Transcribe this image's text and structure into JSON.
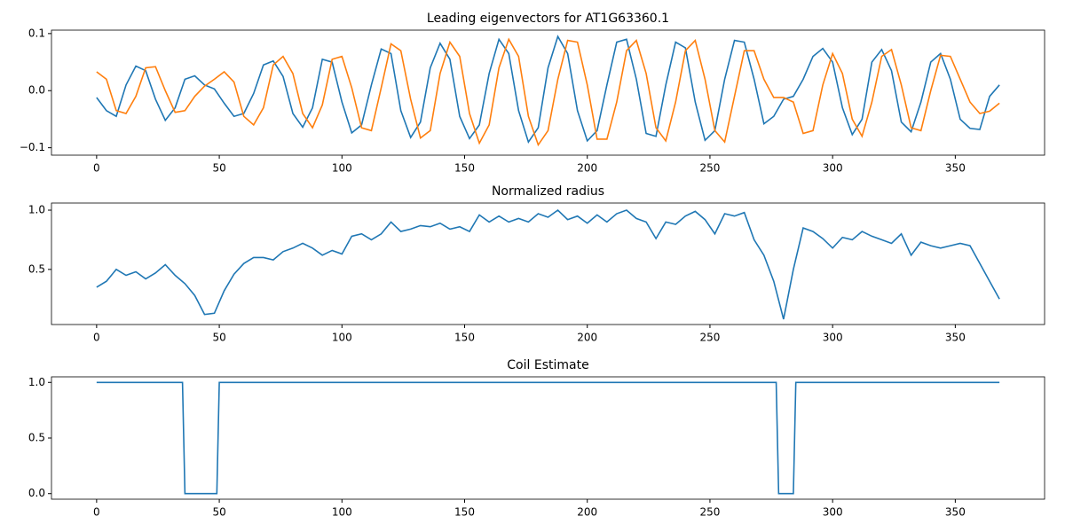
{
  "chart_data": [
    {
      "type": "line",
      "title": "Leading eigenvectors for AT1G63360.1",
      "x": [
        0,
        4,
        8,
        12,
        16,
        20,
        24,
        28,
        32,
        36,
        40,
        44,
        48,
        52,
        56,
        60,
        64,
        68,
        72,
        76,
        80,
        84,
        88,
        92,
        96,
        100,
        104,
        108,
        112,
        116,
        120,
        124,
        128,
        132,
        136,
        140,
        144,
        148,
        152,
        156,
        160,
        164,
        168,
        172,
        176,
        180,
        184,
        188,
        192,
        196,
        200,
        204,
        208,
        212,
        216,
        220,
        224,
        228,
        232,
        236,
        240,
        244,
        248,
        252,
        256,
        260,
        264,
        268,
        272,
        276,
        280,
        284,
        288,
        292,
        296,
        300,
        304,
        308,
        312,
        316,
        320,
        324,
        328,
        332,
        336,
        340,
        344,
        348,
        352,
        356,
        360,
        364,
        368
      ],
      "series": [
        {
          "color": "#1f77b4",
          "values": [
            -0.012,
            -0.035,
            -0.045,
            0.01,
            0.043,
            0.035,
            -0.015,
            -0.052,
            -0.03,
            0.02,
            0.026,
            0.01,
            0.003,
            -0.022,
            -0.045,
            -0.04,
            -0.005,
            0.045,
            0.052,
            0.025,
            -0.04,
            -0.064,
            -0.03,
            0.055,
            0.05,
            -0.02,
            -0.074,
            -0.06,
            0.01,
            0.073,
            0.065,
            -0.035,
            -0.082,
            -0.055,
            0.04,
            0.083,
            0.055,
            -0.045,
            -0.084,
            -0.06,
            0.03,
            0.09,
            0.065,
            -0.035,
            -0.09,
            -0.065,
            0.04,
            0.095,
            0.065,
            -0.035,
            -0.088,
            -0.07,
            0.01,
            0.085,
            0.09,
            0.02,
            -0.075,
            -0.08,
            0.01,
            0.085,
            0.075,
            -0.02,
            -0.087,
            -0.07,
            0.02,
            0.088,
            0.085,
            0.02,
            -0.058,
            -0.045,
            -0.015,
            -0.01,
            0.02,
            0.06,
            0.074,
            0.05,
            -0.03,
            -0.077,
            -0.05,
            0.05,
            0.072,
            0.035,
            -0.055,
            -0.072,
            -0.02,
            0.05,
            0.065,
            0.02,
            -0.05,
            -0.066,
            -0.068,
            -0.01,
            0.01
          ]
        },
        {
          "color": "#ff7f0e",
          "values": [
            0.033,
            0.02,
            -0.035,
            -0.04,
            -0.01,
            0.04,
            0.042,
            0.0,
            -0.038,
            -0.035,
            -0.01,
            0.008,
            0.02,
            0.033,
            0.015,
            -0.045,
            -0.06,
            -0.03,
            0.045,
            0.06,
            0.03,
            -0.04,
            -0.065,
            -0.025,
            0.055,
            0.06,
            0.005,
            -0.065,
            -0.07,
            0.005,
            0.082,
            0.07,
            -0.015,
            -0.083,
            -0.07,
            0.03,
            0.085,
            0.06,
            -0.04,
            -0.092,
            -0.06,
            0.04,
            0.09,
            0.06,
            -0.045,
            -0.095,
            -0.07,
            0.02,
            0.088,
            0.085,
            0.01,
            -0.085,
            -0.085,
            -0.02,
            0.07,
            0.088,
            0.03,
            -0.065,
            -0.088,
            -0.02,
            0.07,
            0.088,
            0.02,
            -0.07,
            -0.09,
            -0.01,
            0.07,
            0.07,
            0.02,
            -0.012,
            -0.012,
            -0.02,
            -0.075,
            -0.07,
            0.01,
            0.065,
            0.03,
            -0.05,
            -0.08,
            -0.02,
            0.06,
            0.072,
            0.01,
            -0.065,
            -0.07,
            0.0,
            0.062,
            0.06,
            0.02,
            -0.02,
            -0.04,
            -0.036,
            -0.022
          ]
        }
      ],
      "xlim": [
        -18.4,
        386.4
      ],
      "xticks": [
        0,
        50,
        100,
        150,
        200,
        250,
        300,
        350
      ],
      "ylim": [
        -0.113,
        0.106
      ],
      "yticks": [
        {
          "value": -0.1,
          "label": "−0.1"
        },
        {
          "value": 0,
          "label": "0.0"
        },
        {
          "value": 0.1,
          "label": "0.1"
        }
      ]
    },
    {
      "type": "line",
      "title": "Normalized radius",
      "x": [
        0,
        4,
        8,
        12,
        16,
        20,
        24,
        28,
        32,
        36,
        40,
        44,
        48,
        52,
        56,
        60,
        64,
        68,
        72,
        76,
        80,
        84,
        88,
        92,
        96,
        100,
        104,
        108,
        112,
        116,
        120,
        124,
        128,
        132,
        136,
        140,
        144,
        148,
        152,
        156,
        160,
        164,
        168,
        172,
        176,
        180,
        184,
        188,
        192,
        196,
        200,
        204,
        208,
        212,
        216,
        220,
        224,
        228,
        232,
        236,
        240,
        244,
        248,
        252,
        256,
        260,
        264,
        268,
        272,
        276,
        280,
        284,
        288,
        292,
        296,
        300,
        304,
        308,
        312,
        316,
        320,
        324,
        328,
        332,
        336,
        340,
        344,
        348,
        352,
        356,
        360,
        364,
        368
      ],
      "series": [
        {
          "color": "#1f77b4",
          "values": [
            0.35,
            0.4,
            0.5,
            0.45,
            0.48,
            0.42,
            0.47,
            0.54,
            0.45,
            0.38,
            0.28,
            0.12,
            0.13,
            0.32,
            0.46,
            0.55,
            0.6,
            0.6,
            0.58,
            0.65,
            0.68,
            0.72,
            0.68,
            0.62,
            0.66,
            0.63,
            0.78,
            0.8,
            0.75,
            0.8,
            0.9,
            0.82,
            0.84,
            0.87,
            0.86,
            0.89,
            0.84,
            0.86,
            0.82,
            0.96,
            0.9,
            0.95,
            0.9,
            0.93,
            0.9,
            0.97,
            0.94,
            1.0,
            0.92,
            0.95,
            0.89,
            0.96,
            0.9,
            0.97,
            1.0,
            0.93,
            0.9,
            0.76,
            0.9,
            0.88,
            0.95,
            0.99,
            0.92,
            0.8,
            0.97,
            0.95,
            0.98,
            0.75,
            0.62,
            0.4,
            0.08,
            0.5,
            0.85,
            0.82,
            0.76,
            0.68,
            0.77,
            0.75,
            0.82,
            0.78,
            0.75,
            0.72,
            0.8,
            0.62,
            0.73,
            0.7,
            0.68,
            0.7,
            0.72,
            0.7,
            0.55,
            0.4,
            0.25
          ]
        }
      ],
      "xlim": [
        -18.4,
        386.4
      ],
      "xticks": [
        0,
        50,
        100,
        150,
        200,
        250,
        300,
        350
      ],
      "ylim": [
        0.035,
        1.06
      ],
      "yticks": [
        0.5,
        {
          "value": 1,
          "label": "1.0"
        }
      ]
    },
    {
      "type": "line",
      "title": "Coil Estimate",
      "x": [
        0,
        35,
        36,
        49,
        50,
        277,
        278,
        284,
        285,
        368
      ],
      "series": [
        {
          "color": "#1f77b4",
          "values": [
            1,
            1,
            0,
            0,
            1,
            1,
            0,
            0,
            1,
            1
          ]
        }
      ],
      "xlim": [
        -18.4,
        386.4
      ],
      "xticks": [
        0,
        50,
        100,
        150,
        200,
        250,
        300,
        350
      ],
      "ylim": [
        -0.05,
        1.05
      ],
      "yticks": [
        {
          "value": 0,
          "label": "0.0"
        },
        0.5,
        {
          "value": 1,
          "label": "1.0"
        }
      ]
    }
  ]
}
